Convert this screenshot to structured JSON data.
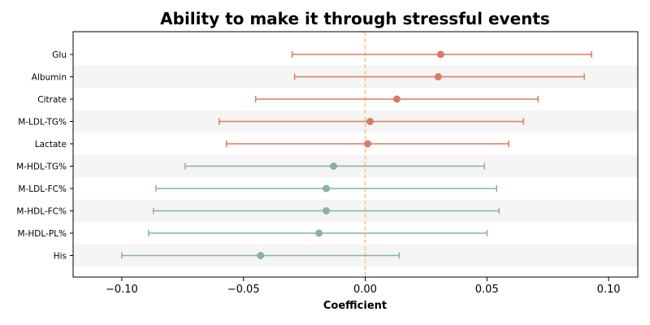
{
  "chart_data": {
    "type": "forest",
    "title": "Ability to make it through stressful events",
    "xlabel": "Coefficient",
    "ylabel": "",
    "xlim": [
      -0.12,
      0.112
    ],
    "xticks": [
      -0.1,
      -0.05,
      0.0,
      0.05,
      0.1
    ],
    "xtick_labels": [
      "−0.10",
      "−0.05",
      "0.00",
      "0.05",
      "0.10"
    ],
    "reference_line": 0.0,
    "reference_line_color": "#f5c27a",
    "positive_color": "#dd7a5e",
    "negative_color": "#86b49c",
    "band_color": "#f5f5f5",
    "grid": false,
    "rows": [
      {
        "label": "Glu",
        "estimate": 0.031,
        "low": -0.03,
        "high": 0.093
      },
      {
        "label": "Albumin",
        "estimate": 0.03,
        "low": -0.029,
        "high": 0.09
      },
      {
        "label": "Citrate",
        "estimate": 0.013,
        "low": -0.045,
        "high": 0.071
      },
      {
        "label": "M-LDL-TG%",
        "estimate": 0.002,
        "low": -0.06,
        "high": 0.065
      },
      {
        "label": "Lactate",
        "estimate": 0.001,
        "low": -0.057,
        "high": 0.059
      },
      {
        "label": "M-HDL-TG%",
        "estimate": -0.013,
        "low": -0.074,
        "high": 0.049
      },
      {
        "label": "M-LDL-FC%",
        "estimate": -0.016,
        "low": -0.086,
        "high": 0.054
      },
      {
        "label": "M-HDL-FC%",
        "estimate": -0.016,
        "low": -0.087,
        "high": 0.055
      },
      {
        "label": "M-HDL-PL%",
        "estimate": -0.019,
        "low": -0.089,
        "high": 0.05
      },
      {
        "label": "His",
        "estimate": -0.043,
        "low": -0.1,
        "high": 0.014
      }
    ]
  }
}
